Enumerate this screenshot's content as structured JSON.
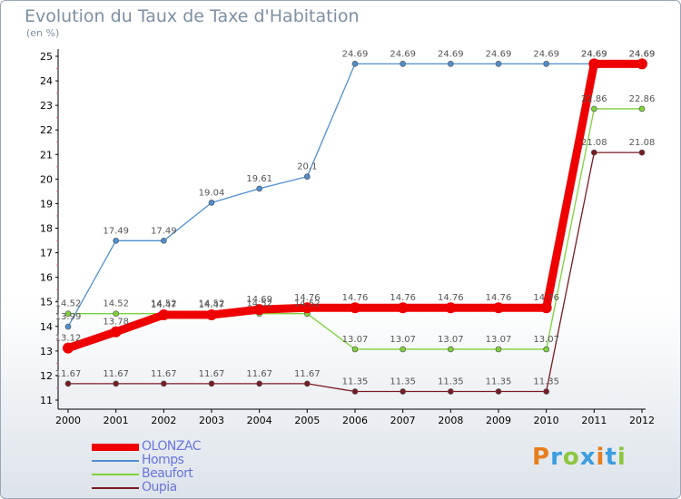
{
  "header": {
    "title": "Evolution du Taux de Taxe d'Habitation",
    "subtitle": "(en %)"
  },
  "chart_data": {
    "type": "line",
    "title": "Evolution du Taux de Taxe d'Habitation",
    "subtitle": "(en %)",
    "xlabel": "",
    "ylabel": "",
    "x": [
      "2000",
      "2001",
      "2002",
      "2003",
      "2004",
      "2005",
      "2006",
      "2007",
      "2008",
      "2009",
      "2010",
      "2011",
      "2012"
    ],
    "ylim": [
      11,
      25
    ],
    "yticks": [
      11,
      12,
      13,
      14,
      15,
      16,
      17,
      18,
      19,
      20,
      21,
      22,
      23,
      24,
      25
    ],
    "grid": false,
    "legend_position": "bottom-left",
    "series": [
      {
        "name": "OLONZAC",
        "color": "#ee0000",
        "width": "thick",
        "values": [
          13.12,
          13.78,
          14.47,
          14.47,
          14.69,
          14.76,
          14.76,
          14.76,
          14.76,
          14.76,
          14.76,
          24.69,
          24.69
        ],
        "labels": [
          "13.12",
          "13.78",
          "14.47",
          "14.47",
          "14.69",
          "14.76",
          "14.76",
          "14.76",
          "14.76",
          "14.76",
          "14.76",
          "24.69",
          "24.69"
        ]
      },
      {
        "name": "Homps",
        "color": "#4f8fcf",
        "width": "thin",
        "values": [
          13.99,
          17.49,
          17.49,
          19.04,
          19.61,
          20.1,
          24.69,
          24.69,
          24.69,
          24.69,
          24.69,
          24.69,
          24.69
        ],
        "labels": [
          "13.99",
          "17.49",
          "17.49",
          "19.04",
          "19.61",
          "20.1",
          "24.69",
          "24.69",
          "24.69",
          "24.69",
          "24.69",
          "24.69",
          "24.69"
        ]
      },
      {
        "name": "Beaufort",
        "color": "#7ed23a",
        "width": "thin",
        "values": [
          14.52,
          14.52,
          14.52,
          14.52,
          14.52,
          14.52,
          13.07,
          13.07,
          13.07,
          13.07,
          13.07,
          22.86,
          22.86
        ],
        "labels": [
          "14.52",
          "14.52",
          "14.52",
          "14.52",
          "14.52",
          "14.52",
          "13.07",
          "13.07",
          "13.07",
          "13.07",
          "13.07",
          "22.86",
          "22.86"
        ]
      },
      {
        "name": "Oupia",
        "color": "#7a1a22",
        "width": "thin",
        "values": [
          11.67,
          11.67,
          11.67,
          11.67,
          11.67,
          11.67,
          11.35,
          11.35,
          11.35,
          11.35,
          11.35,
          21.08,
          21.08
        ],
        "labels": [
          "11.67",
          "11.67",
          "11.67",
          "11.67",
          "11.67",
          "11.67",
          "11.35",
          "11.35",
          "11.35",
          "11.35",
          "11.35",
          "21.08",
          "21.08"
        ]
      }
    ]
  },
  "logo": {
    "letters": [
      "P",
      "r",
      "o",
      "x",
      "i",
      "t",
      "i"
    ],
    "colors": [
      "#e87d1e",
      "#3a9de0",
      "#8cc63f",
      "#3a9de0",
      "#e87d1e",
      "#3a9de0",
      "#8cc63f"
    ]
  }
}
